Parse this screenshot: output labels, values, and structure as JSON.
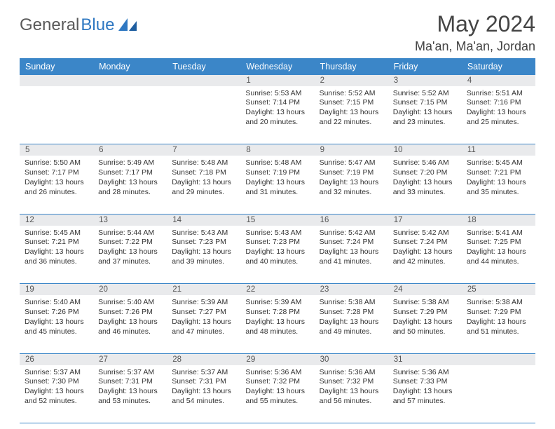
{
  "brand": {
    "part1": "General",
    "part2": "Blue"
  },
  "header": {
    "title": "May 2024",
    "location": "Ma'an, Ma'an, Jordan"
  },
  "columns": [
    "Sunday",
    "Monday",
    "Tuesday",
    "Wednesday",
    "Thursday",
    "Friday",
    "Saturday"
  ],
  "colors": {
    "header_bg": "#3b86c8",
    "header_text": "#ffffff",
    "daynum_bg": "#e9eaec",
    "border": "#3b86c8",
    "logo_gray": "#5a5a5a",
    "logo_blue": "#2f78c2"
  },
  "weeks": [
    {
      "nums": [
        "",
        "",
        "",
        "1",
        "2",
        "3",
        "4"
      ],
      "cells": [
        null,
        null,
        null,
        {
          "sr": "5:53 AM",
          "ss": "7:14 PM",
          "dl": "13 hours and 20 minutes."
        },
        {
          "sr": "5:52 AM",
          "ss": "7:15 PM",
          "dl": "13 hours and 22 minutes."
        },
        {
          "sr": "5:52 AM",
          "ss": "7:15 PM",
          "dl": "13 hours and 23 minutes."
        },
        {
          "sr": "5:51 AM",
          "ss": "7:16 PM",
          "dl": "13 hours and 25 minutes."
        }
      ]
    },
    {
      "nums": [
        "5",
        "6",
        "7",
        "8",
        "9",
        "10",
        "11"
      ],
      "cells": [
        {
          "sr": "5:50 AM",
          "ss": "7:17 PM",
          "dl": "13 hours and 26 minutes."
        },
        {
          "sr": "5:49 AM",
          "ss": "7:17 PM",
          "dl": "13 hours and 28 minutes."
        },
        {
          "sr": "5:48 AM",
          "ss": "7:18 PM",
          "dl": "13 hours and 29 minutes."
        },
        {
          "sr": "5:48 AM",
          "ss": "7:19 PM",
          "dl": "13 hours and 31 minutes."
        },
        {
          "sr": "5:47 AM",
          "ss": "7:19 PM",
          "dl": "13 hours and 32 minutes."
        },
        {
          "sr": "5:46 AM",
          "ss": "7:20 PM",
          "dl": "13 hours and 33 minutes."
        },
        {
          "sr": "5:45 AM",
          "ss": "7:21 PM",
          "dl": "13 hours and 35 minutes."
        }
      ]
    },
    {
      "nums": [
        "12",
        "13",
        "14",
        "15",
        "16",
        "17",
        "18"
      ],
      "cells": [
        {
          "sr": "5:45 AM",
          "ss": "7:21 PM",
          "dl": "13 hours and 36 minutes."
        },
        {
          "sr": "5:44 AM",
          "ss": "7:22 PM",
          "dl": "13 hours and 37 minutes."
        },
        {
          "sr": "5:43 AM",
          "ss": "7:23 PM",
          "dl": "13 hours and 39 minutes."
        },
        {
          "sr": "5:43 AM",
          "ss": "7:23 PM",
          "dl": "13 hours and 40 minutes."
        },
        {
          "sr": "5:42 AM",
          "ss": "7:24 PM",
          "dl": "13 hours and 41 minutes."
        },
        {
          "sr": "5:42 AM",
          "ss": "7:24 PM",
          "dl": "13 hours and 42 minutes."
        },
        {
          "sr": "5:41 AM",
          "ss": "7:25 PM",
          "dl": "13 hours and 44 minutes."
        }
      ]
    },
    {
      "nums": [
        "19",
        "20",
        "21",
        "22",
        "23",
        "24",
        "25"
      ],
      "cells": [
        {
          "sr": "5:40 AM",
          "ss": "7:26 PM",
          "dl": "13 hours and 45 minutes."
        },
        {
          "sr": "5:40 AM",
          "ss": "7:26 PM",
          "dl": "13 hours and 46 minutes."
        },
        {
          "sr": "5:39 AM",
          "ss": "7:27 PM",
          "dl": "13 hours and 47 minutes."
        },
        {
          "sr": "5:39 AM",
          "ss": "7:28 PM",
          "dl": "13 hours and 48 minutes."
        },
        {
          "sr": "5:38 AM",
          "ss": "7:28 PM",
          "dl": "13 hours and 49 minutes."
        },
        {
          "sr": "5:38 AM",
          "ss": "7:29 PM",
          "dl": "13 hours and 50 minutes."
        },
        {
          "sr": "5:38 AM",
          "ss": "7:29 PM",
          "dl": "13 hours and 51 minutes."
        }
      ]
    },
    {
      "nums": [
        "26",
        "27",
        "28",
        "29",
        "30",
        "31",
        ""
      ],
      "cells": [
        {
          "sr": "5:37 AM",
          "ss": "7:30 PM",
          "dl": "13 hours and 52 minutes."
        },
        {
          "sr": "5:37 AM",
          "ss": "7:31 PM",
          "dl": "13 hours and 53 minutes."
        },
        {
          "sr": "5:37 AM",
          "ss": "7:31 PM",
          "dl": "13 hours and 54 minutes."
        },
        {
          "sr": "5:36 AM",
          "ss": "7:32 PM",
          "dl": "13 hours and 55 minutes."
        },
        {
          "sr": "5:36 AM",
          "ss": "7:32 PM",
          "dl": "13 hours and 56 minutes."
        },
        {
          "sr": "5:36 AM",
          "ss": "7:33 PM",
          "dl": "13 hours and 57 minutes."
        },
        null
      ]
    }
  ],
  "labels": {
    "sunrise": "Sunrise:",
    "sunset": "Sunset:",
    "daylight": "Daylight:"
  }
}
